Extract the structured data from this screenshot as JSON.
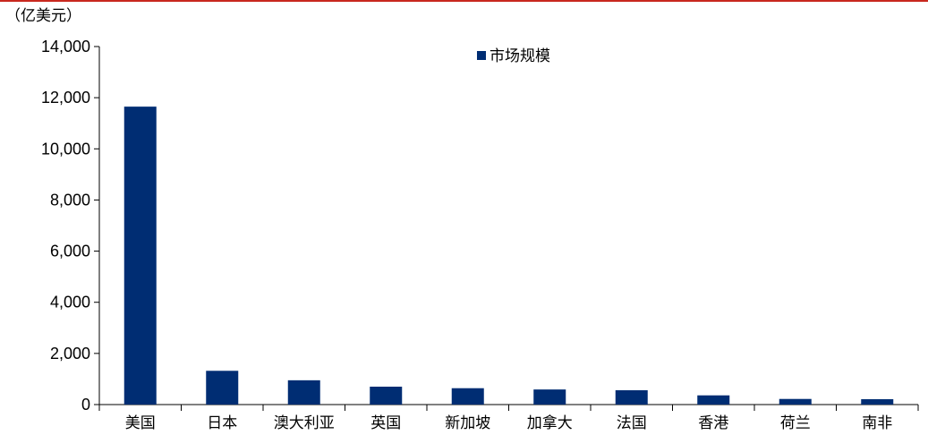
{
  "chart_data": {
    "type": "bar",
    "unit_label": "（亿美元）",
    "categories": [
      "美国",
      "日本",
      "澳大利亚",
      "英国",
      "新加坡",
      "加拿大",
      "法国",
      "香港",
      "荷兰",
      "南非"
    ],
    "series": [
      {
        "name": "市场规模",
        "values": [
          11650,
          1320,
          950,
          700,
          640,
          590,
          560,
          360,
          220,
          210
        ]
      }
    ],
    "yticks": [
      "0",
      "2,000",
      "4,000",
      "6,000",
      "8,000",
      "10,000",
      "12,000",
      "14,000"
    ],
    "ylim": [
      0,
      14000
    ],
    "legend_position": "top-center",
    "grid": false,
    "colors": {
      "bar": "#002d73",
      "axis": "#000000",
      "top_rule": "#c8281e"
    }
  }
}
